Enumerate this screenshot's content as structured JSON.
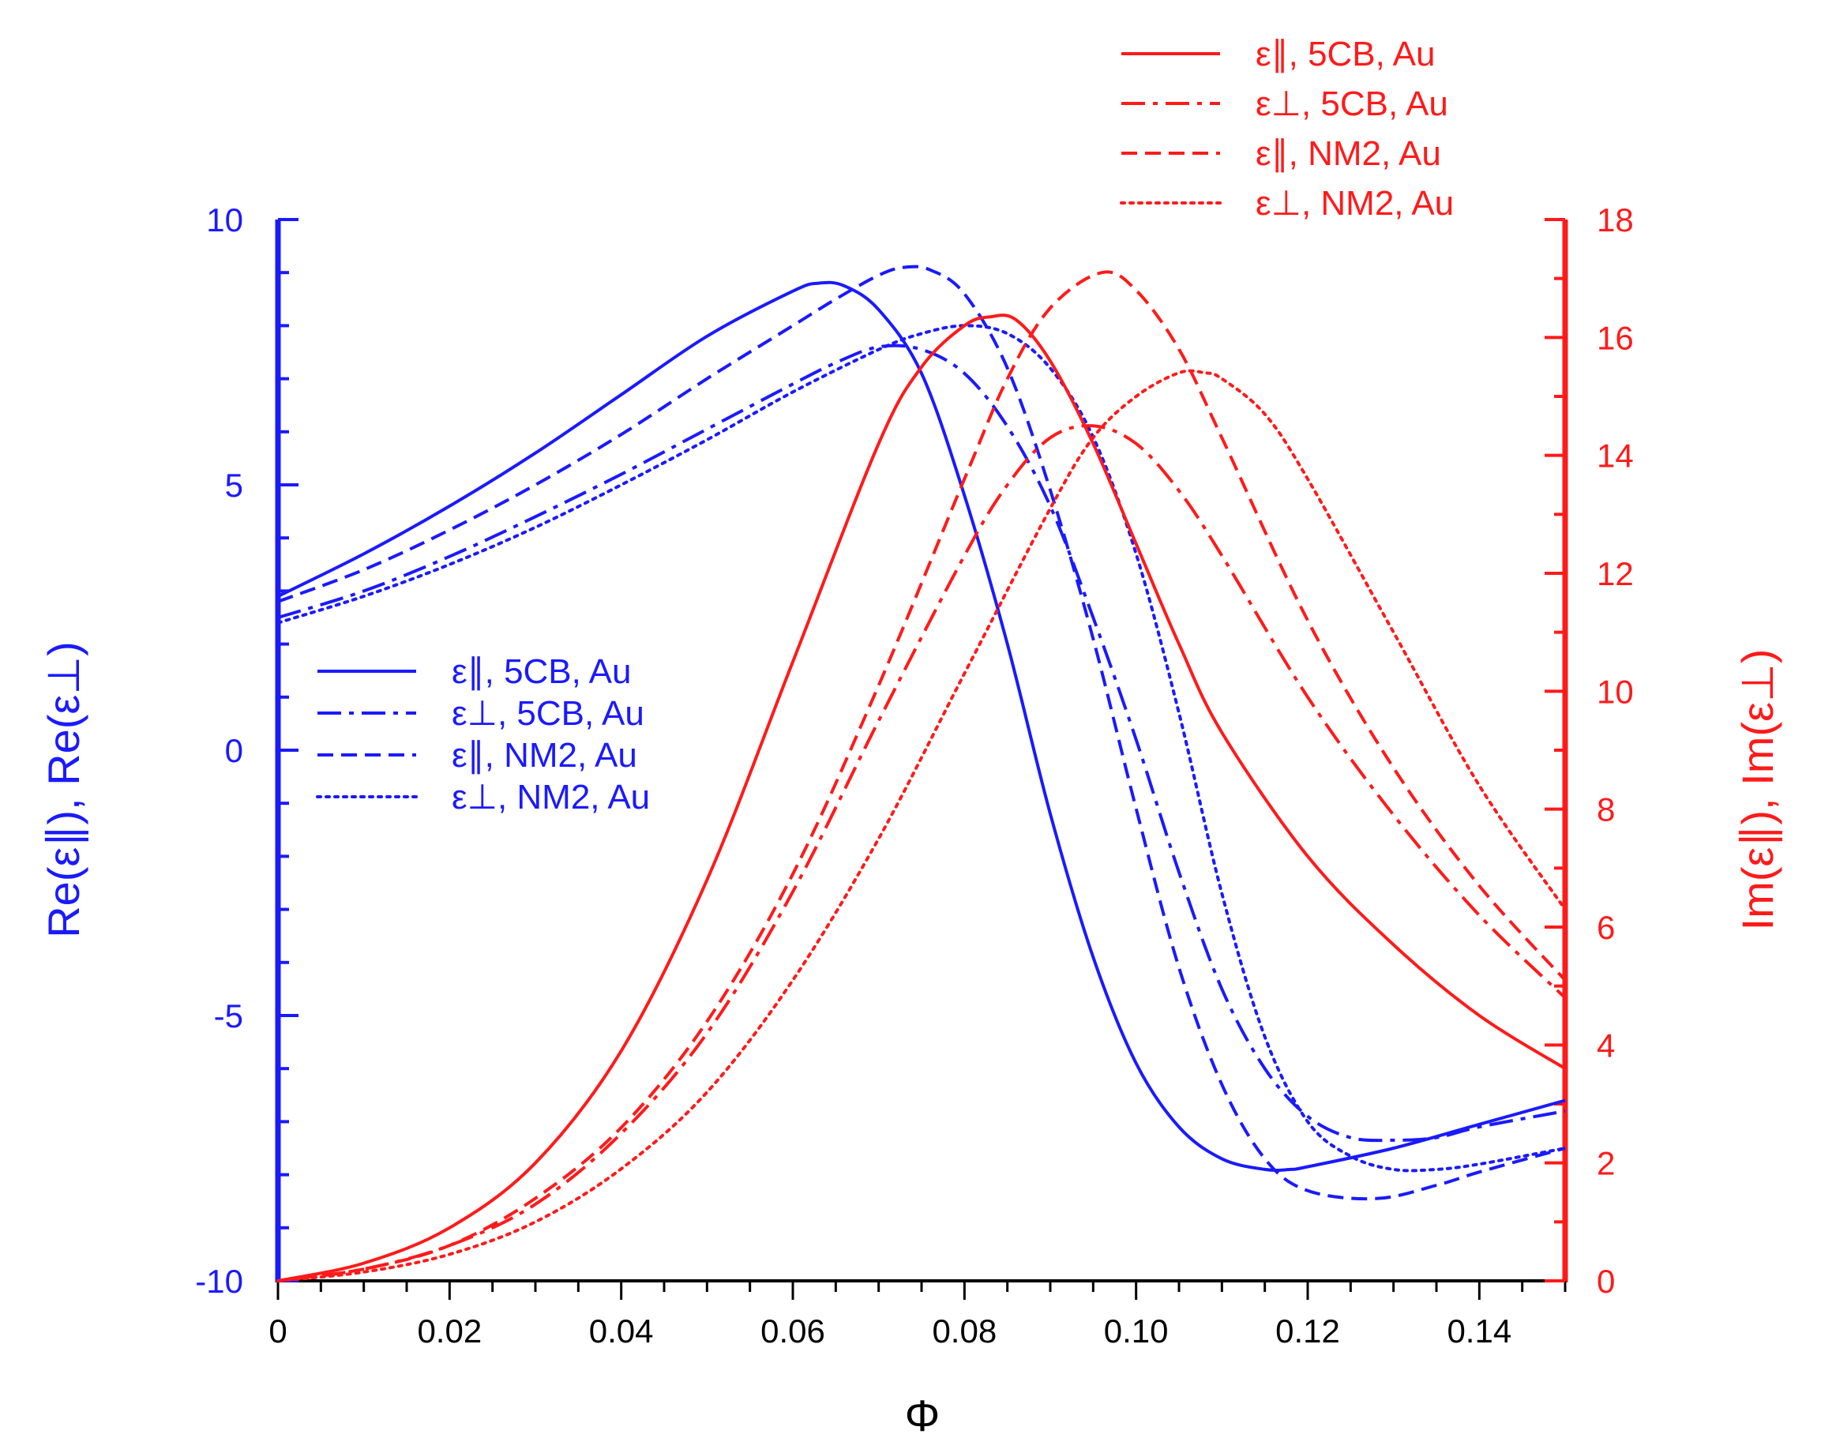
{
  "chart_data": {
    "type": "line",
    "colors": {
      "left": "#1a1aff",
      "right": "#ff1a1a"
    },
    "x": {
      "label": "Φ",
      "range": [
        0,
        0.15
      ],
      "ticks": [
        0,
        0.02,
        0.04,
        0.06,
        0.08,
        0.1,
        0.12,
        0.14
      ],
      "tick_labels": [
        "0",
        "0.02",
        "0.04",
        "0.06",
        "0.08",
        "0.10",
        "0.12",
        "0.14"
      ]
    },
    "y_left": {
      "label": "Re(ε∥),   Re(ε⊥)",
      "range": [
        -10,
        10
      ],
      "ticks": [
        -10,
        -5,
        0,
        5,
        10
      ],
      "tick_labels": [
        "-10",
        "-5",
        "0",
        "5",
        "10"
      ]
    },
    "y_right": {
      "label": "Im(ε∥),   Im(ε⊥)",
      "range": [
        0,
        18
      ],
      "ticks": [
        0,
        2,
        4,
        6,
        8,
        10,
        12,
        14,
        16,
        18
      ],
      "tick_labels": [
        "0",
        "2",
        "4",
        "6",
        "8",
        "10",
        "12",
        "14",
        "16",
        "18"
      ]
    },
    "legend_left": [
      {
        "label": "ε∥, 5CB, Au",
        "style": "solid"
      },
      {
        "label": "ε⊥, 5CB, Au",
        "style": "dashdot"
      },
      {
        "label": "ε∥, NM2, Au",
        "style": "dash"
      },
      {
        "label": "ε⊥, NM2, Au",
        "style": "dot"
      }
    ],
    "legend_right": [
      {
        "label": "ε∥, 5CB, Au",
        "style": "solid"
      },
      {
        "label": "ε⊥, 5CB, Au",
        "style": "dashdot"
      },
      {
        "label": "ε∥, NM2, Au",
        "style": "dash"
      },
      {
        "label": "ε⊥, NM2, Au",
        "style": "dot"
      }
    ],
    "series": [
      {
        "name": "Re(ε∥), 5CB, Au",
        "axis": "left",
        "style": "solid",
        "x": [
          0,
          0.01,
          0.02,
          0.03,
          0.04,
          0.05,
          0.06,
          0.063,
          0.066,
          0.07,
          0.075,
          0.08,
          0.085,
          0.09,
          0.095,
          0.1,
          0.105,
          0.11,
          0.115,
          0.118,
          0.12,
          0.13,
          0.14,
          0.15
        ],
        "y": [
          2.9,
          3.7,
          4.6,
          5.6,
          6.7,
          7.8,
          8.65,
          8.8,
          8.75,
          8.3,
          7.1,
          4.8,
          2.0,
          -1.2,
          -3.9,
          -5.9,
          -7.1,
          -7.7,
          -7.9,
          -7.9,
          -7.85,
          -7.5,
          -7.05,
          -6.6
        ]
      },
      {
        "name": "Re(ε⊥), 5CB, Au",
        "axis": "left",
        "style": "dashdot",
        "x": [
          0,
          0.01,
          0.02,
          0.03,
          0.04,
          0.05,
          0.06,
          0.065,
          0.07,
          0.075,
          0.08,
          0.085,
          0.09,
          0.095,
          0.1,
          0.105,
          0.11,
          0.115,
          0.12,
          0.125,
          0.13,
          0.135,
          0.14,
          0.15
        ],
        "y": [
          2.5,
          3.0,
          3.65,
          4.4,
          5.2,
          6.05,
          6.9,
          7.3,
          7.6,
          7.55,
          7.1,
          6.1,
          4.6,
          2.5,
          0.2,
          -2.3,
          -4.5,
          -6.0,
          -6.9,
          -7.3,
          -7.35,
          -7.3,
          -7.1,
          -6.8
        ]
      },
      {
        "name": "Re(ε∥), NM2, Au",
        "axis": "left",
        "style": "dash",
        "x": [
          0,
          0.01,
          0.02,
          0.03,
          0.04,
          0.05,
          0.06,
          0.065,
          0.07,
          0.073,
          0.076,
          0.08,
          0.085,
          0.09,
          0.095,
          0.1,
          0.105,
          0.11,
          0.115,
          0.12,
          0.128,
          0.135,
          0.14,
          0.15
        ],
        "y": [
          2.8,
          3.4,
          4.15,
          5.0,
          5.95,
          7.0,
          8.0,
          8.5,
          8.95,
          9.1,
          9.05,
          8.6,
          7.2,
          4.9,
          2.1,
          -1.1,
          -4.1,
          -6.3,
          -7.7,
          -8.3,
          -8.45,
          -8.2,
          -7.95,
          -7.5
        ]
      },
      {
        "name": "Re(ε⊥), NM2, Au",
        "axis": "left",
        "style": "dot",
        "x": [
          0,
          0.01,
          0.02,
          0.03,
          0.04,
          0.05,
          0.06,
          0.07,
          0.075,
          0.08,
          0.085,
          0.09,
          0.095,
          0.1,
          0.105,
          0.11,
          0.115,
          0.12,
          0.125,
          0.13,
          0.135,
          0.14,
          0.15
        ],
        "y": [
          2.4,
          2.9,
          3.5,
          4.2,
          5.0,
          5.85,
          6.75,
          7.55,
          7.85,
          8.0,
          7.85,
          7.2,
          5.9,
          3.7,
          0.7,
          -2.7,
          -5.4,
          -7.0,
          -7.65,
          -7.9,
          -7.9,
          -7.8,
          -7.5
        ]
      },
      {
        "name": "Im(ε∥), 5CB, Au",
        "axis": "right",
        "style": "solid",
        "x": [
          0,
          0.01,
          0.02,
          0.03,
          0.04,
          0.05,
          0.06,
          0.07,
          0.075,
          0.08,
          0.083,
          0.086,
          0.09,
          0.095,
          0.1,
          0.105,
          0.11,
          0.12,
          0.13,
          0.14,
          0.15
        ],
        "y": [
          0,
          0.3,
          0.9,
          2.0,
          3.9,
          6.8,
          10.5,
          14.2,
          15.5,
          16.2,
          16.35,
          16.3,
          15.6,
          14.2,
          12.5,
          10.8,
          9.3,
          7.2,
          5.7,
          4.5,
          3.6
        ]
      },
      {
        "name": "Im(ε⊥), 5CB, Au",
        "axis": "right",
        "style": "dashdot",
        "x": [
          0,
          0.01,
          0.02,
          0.03,
          0.04,
          0.05,
          0.06,
          0.07,
          0.08,
          0.085,
          0.09,
          0.095,
          0.1,
          0.105,
          0.11,
          0.12,
          0.13,
          0.14,
          0.15
        ],
        "y": [
          0,
          0.2,
          0.6,
          1.3,
          2.5,
          4.2,
          6.6,
          9.5,
          12.3,
          13.5,
          14.3,
          14.5,
          14.2,
          13.4,
          12.3,
          9.9,
          7.9,
          6.2,
          4.8
        ]
      },
      {
        "name": "Im(ε∥), NM2, Au",
        "axis": "right",
        "style": "dash",
        "x": [
          0,
          0.01,
          0.02,
          0.03,
          0.04,
          0.05,
          0.06,
          0.07,
          0.08,
          0.085,
          0.09,
          0.096,
          0.1,
          0.105,
          0.11,
          0.12,
          0.13,
          0.14,
          0.15
        ],
        "y": [
          0,
          0.2,
          0.6,
          1.4,
          2.6,
          4.4,
          6.9,
          10.1,
          13.6,
          15.3,
          16.5,
          17.1,
          16.8,
          15.8,
          14.3,
          11.2,
          8.7,
          6.7,
          5.1
        ]
      },
      {
        "name": "Im(ε⊥), NM2, Au",
        "axis": "right",
        "style": "dot",
        "x": [
          0,
          0.01,
          0.02,
          0.03,
          0.04,
          0.05,
          0.06,
          0.07,
          0.08,
          0.09,
          0.095,
          0.1,
          0.105,
          0.108,
          0.11,
          0.115,
          0.12,
          0.13,
          0.14,
          0.15
        ],
        "y": [
          0,
          0.15,
          0.45,
          1.0,
          1.9,
          3.2,
          5.1,
          7.5,
          10.3,
          13.1,
          14.3,
          15.0,
          15.4,
          15.4,
          15.3,
          14.7,
          13.6,
          11.0,
          8.4,
          6.3
        ]
      }
    ]
  }
}
